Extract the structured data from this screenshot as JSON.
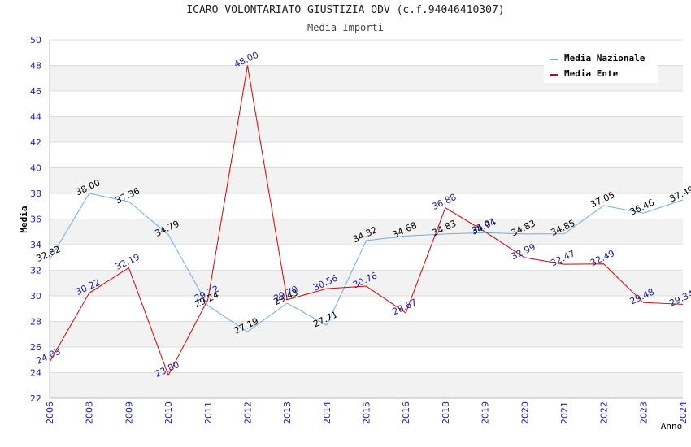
{
  "header": {
    "title": "ICARO VOLONTARIATO GIUSTIZIA ODV (c.f.94046410307)",
    "subtitle": "Media Importi"
  },
  "chart_data": {
    "type": "line",
    "xlabel": "Anno",
    "ylabel": "Media",
    "ylim": [
      22,
      50
    ],
    "yticks": [
      22,
      24,
      26,
      28,
      30,
      32,
      34,
      36,
      38,
      40,
      42,
      44,
      46,
      48,
      50
    ],
    "categories": [
      "2006",
      "2008",
      "2009",
      "2010",
      "2011",
      "2012",
      "2013",
      "2014",
      "2015",
      "2016",
      "2018",
      "2019",
      "2020",
      "2021",
      "2022",
      "2023",
      "2024"
    ],
    "grid": true,
    "legend_position": "top-right",
    "series": [
      {
        "name": "Media Nazionale",
        "color": "#6aaee6",
        "label_color": "#000000",
        "values": [
          32.82,
          38.0,
          37.36,
          34.79,
          29.24,
          27.19,
          29.43,
          27.71,
          34.32,
          34.68,
          34.83,
          34.94,
          34.83,
          34.85,
          37.05,
          36.46,
          37.49
        ],
        "labels": [
          "32.82",
          "38.00",
          "37.36",
          "34.79",
          "29.24",
          "27.19",
          "29.43",
          "27.71",
          "34.32",
          "34.68",
          "34.83",
          "34.94",
          "34.83",
          "34.85",
          "37.05",
          "36.46",
          "37.49"
        ]
      },
      {
        "name": "Media Ente",
        "color": "#e00000",
        "label_color": "#1a1aa0",
        "values": [
          24.83,
          30.22,
          32.19,
          23.8,
          29.72,
          48.0,
          29.7,
          30.56,
          30.76,
          28.67,
          36.88,
          35.01,
          32.99,
          32.47,
          32.49,
          29.48,
          29.34
        ],
        "labels": [
          "24.83",
          "30.22",
          "32.19",
          "23.80",
          "29.72",
          "48.00",
          "29.70",
          "30.56",
          "30.76",
          "28.67",
          "36.88",
          "35.01",
          "32.99",
          "32.47",
          "32.49",
          "29.48",
          "29.34"
        ]
      }
    ]
  }
}
